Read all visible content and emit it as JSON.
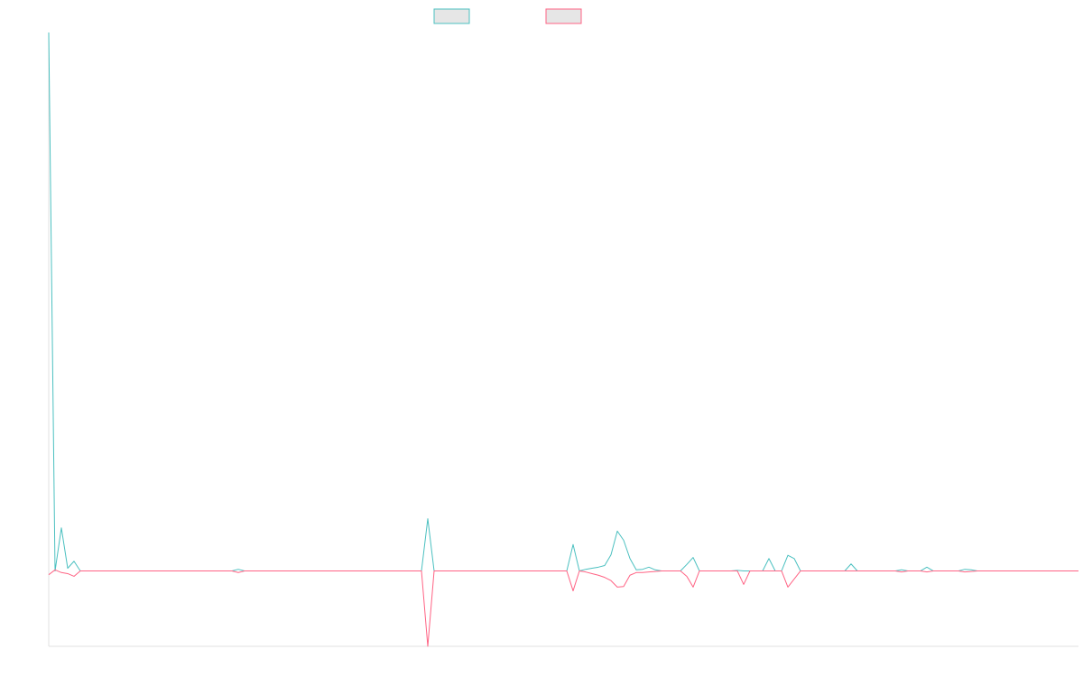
{
  "chart_data": {
    "type": "line",
    "series": [
      {
        "color": "#4bc0c0",
        "values": [
          100,
          0,
          8,
          0.5,
          1.8,
          0,
          0,
          0,
          0,
          0,
          0,
          0,
          0,
          0,
          0,
          0,
          0,
          0,
          0,
          0,
          0,
          0,
          0,
          0,
          0,
          0,
          0,
          0,
          0,
          0,
          0.3,
          0,
          0,
          0,
          0,
          0,
          0,
          0,
          0,
          0,
          0,
          0,
          0,
          0,
          0,
          0,
          0,
          0,
          0,
          0,
          0,
          0,
          0,
          0,
          0,
          0,
          0,
          0,
          0,
          0,
          9.7,
          0,
          0,
          0,
          0,
          0,
          0,
          0,
          0,
          0,
          0,
          0,
          0,
          0,
          0,
          0,
          0,
          0,
          0,
          0,
          0,
          0,
          0,
          4.9,
          0,
          0.3,
          0.5,
          0.7,
          1,
          3,
          7.4,
          5.7,
          2.3,
          0.2,
          0.3,
          0.7,
          0.2,
          0,
          0,
          0,
          0,
          1.2,
          2.5,
          0,
          0,
          0,
          0,
          0,
          0,
          0.1,
          0,
          0,
          0,
          0,
          2.3,
          0,
          0,
          2.9,
          2.3,
          0,
          0,
          0,
          0,
          0,
          0,
          0,
          0,
          1.3,
          0,
          0,
          0,
          0,
          0,
          0,
          0,
          0.2,
          0,
          0,
          0,
          0.7,
          0,
          0,
          0,
          0,
          0,
          0.3,
          0.2,
          0,
          0,
          0,
          0,
          0,
          0,
          0,
          0,
          0,
          0,
          0,
          0,
          0,
          0,
          0,
          0,
          0
        ]
      },
      {
        "color": "#ff6384",
        "values": [
          -0.7,
          0.2,
          -0.3,
          -0.5,
          -1,
          0,
          0,
          0,
          0,
          0,
          0,
          0,
          0,
          0,
          0,
          0,
          0,
          0,
          0,
          0,
          0,
          0,
          0,
          0,
          0,
          0,
          0,
          0,
          0,
          0,
          -0.3,
          0,
          0,
          0,
          0,
          0,
          0,
          0,
          0,
          0,
          0,
          0,
          0,
          0,
          0,
          0,
          0,
          0,
          0,
          0,
          0,
          0,
          0,
          0,
          0,
          0,
          0,
          0,
          0,
          0,
          -14,
          0,
          0,
          0,
          0,
          0,
          0,
          0,
          0,
          0,
          0,
          0,
          0,
          0,
          0,
          0,
          0,
          0,
          0,
          0,
          0,
          0,
          0,
          -3.7,
          0,
          -0.2,
          -0.5,
          -0.8,
          -1.2,
          -1.8,
          -3,
          -2.9,
          -0.8,
          -0.3,
          -0.3,
          -0.2,
          -0.1,
          0,
          0,
          0,
          0,
          -1,
          -3,
          0,
          0,
          0,
          0,
          0,
          0,
          0,
          -2.5,
          0,
          0,
          0,
          0,
          0,
          0,
          -3,
          -1.5,
          0,
          0,
          0,
          0,
          0,
          0,
          0,
          0,
          0,
          0,
          0,
          0,
          0,
          0,
          0,
          0,
          -0.2,
          0,
          0,
          0,
          -0.2,
          0,
          0,
          0,
          0,
          0,
          -0.2,
          -0.1,
          0,
          0,
          0,
          0,
          0,
          0,
          0,
          0,
          0,
          0,
          0,
          0,
          0,
          0,
          0,
          0,
          0
        ]
      }
    ],
    "ylim": [
      -14,
      100
    ]
  }
}
